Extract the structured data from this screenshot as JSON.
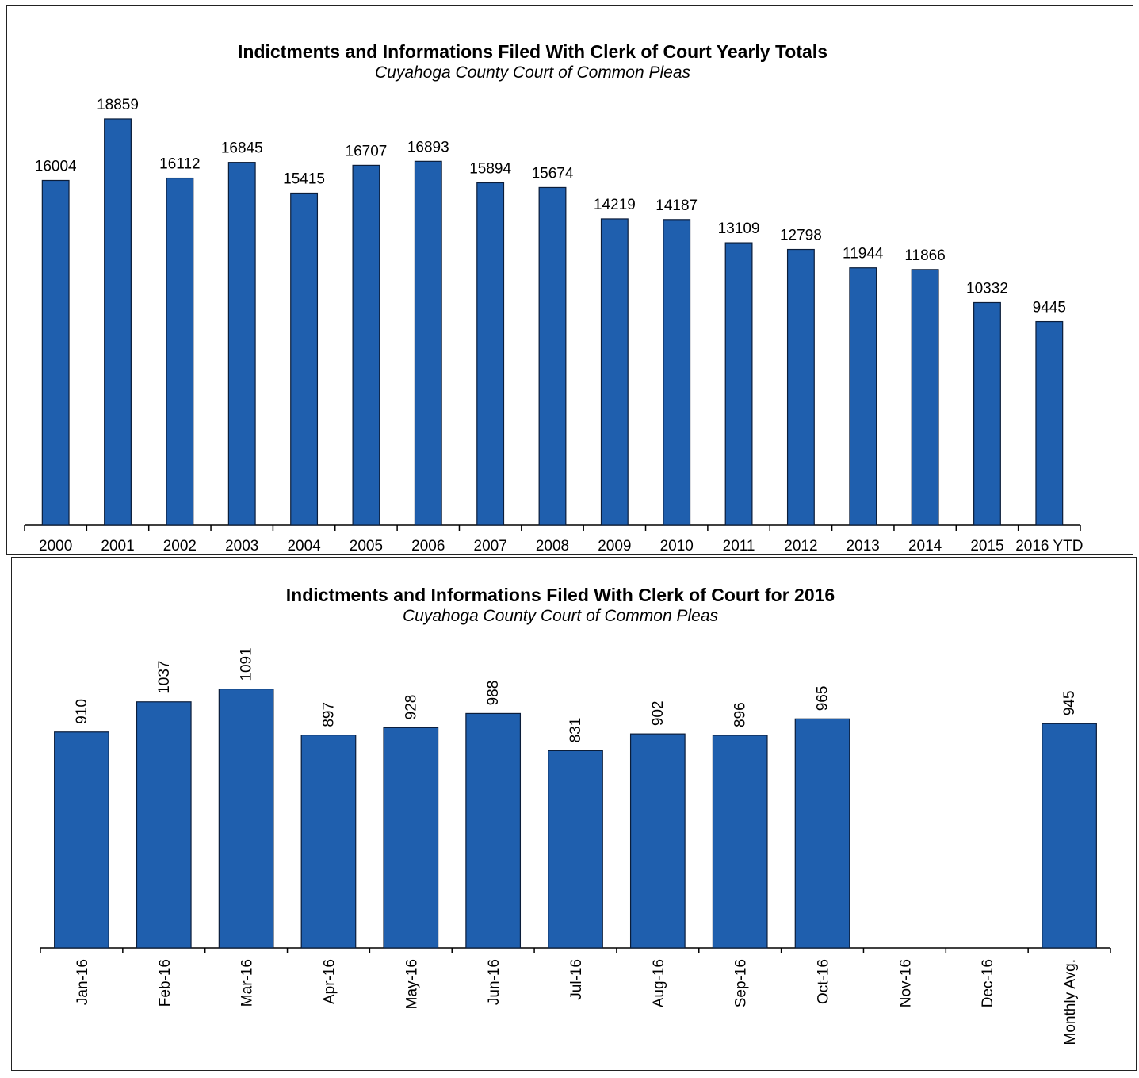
{
  "chart_data": [
    {
      "type": "bar",
      "title": "Indictments and Informations Filed With Clerk of Court Yearly Totals",
      "subtitle": "Cuyahoga County Court of Common Pleas",
      "categories": [
        "2000",
        "2001",
        "2002",
        "2003",
        "2004",
        "2005",
        "2006",
        "2007",
        "2008",
        "2009",
        "2010",
        "2011",
        "2012",
        "2013",
        "2014",
        "2015",
        "2016 YTD"
      ],
      "values": [
        16004,
        18859,
        16112,
        16845,
        15415,
        16707,
        16893,
        15894,
        15674,
        14219,
        14187,
        13109,
        12798,
        11944,
        11866,
        10332,
        9445
      ],
      "value_labels": [
        "16004",
        "18859",
        "16112",
        "16845",
        "15415",
        "16707",
        "16893",
        "15894",
        "15674",
        "14219",
        "14187",
        "13109",
        "12798",
        "11944",
        "11866",
        "10332",
        "9445"
      ],
      "ylim": [
        0,
        20000
      ],
      "grid": false,
      "bar_color": "#1f5fae"
    },
    {
      "type": "bar",
      "title": "Indictments and Informations Filed With Clerk of Court for 2016",
      "subtitle": "Cuyahoga County Court of Common Pleas",
      "categories": [
        "Jan-16",
        "Feb-16",
        "Mar-16",
        "Apr-16",
        "May-16",
        "Jun-16",
        "Jul-16",
        "Aug-16",
        "Sep-16",
        "Oct-16",
        "Nov-16",
        "Dec-16",
        "Monthly Avg."
      ],
      "values": [
        910,
        1037,
        1091,
        897,
        928,
        988,
        831,
        902,
        896,
        965,
        null,
        null,
        945
      ],
      "value_labels": [
        "910",
        "1037",
        "1091",
        "897",
        "928",
        "988",
        "831",
        "902",
        "896",
        "965",
        "",
        "",
        "945"
      ],
      "ylim": [
        0,
        1200
      ],
      "grid": false,
      "bar_color": "#1f5fae"
    }
  ]
}
